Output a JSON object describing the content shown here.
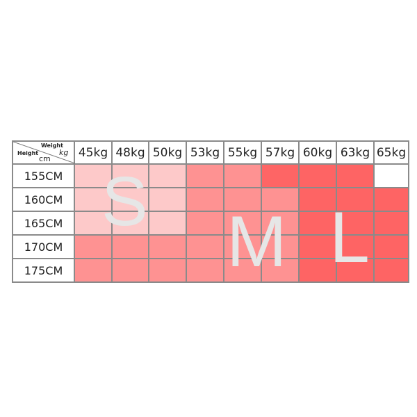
{
  "corner": {
    "weight": "Weight",
    "kg": "kg",
    "height": "Height",
    "cm": "cm"
  },
  "weights": [
    "45kg",
    "48kg",
    "50kg",
    "53kg",
    "55kg",
    "57kg",
    "60kg",
    "63kg",
    "65kg"
  ],
  "heights": [
    "155CM",
    "160CM",
    "165CM",
    "170CM",
    "175CM"
  ],
  "sizes": {
    "S": "S",
    "M": "M",
    "L": "L"
  },
  "colors": {
    "S": "#fdc9c9",
    "M": "#fe9292",
    "M2": "#fe6565",
    "L": "#fe6464",
    "none": "#ffffff"
  },
  "grid": [
    [
      "S",
      "S",
      "S",
      "M",
      "M",
      "M2",
      "L",
      "L",
      "none"
    ],
    [
      "S",
      "S",
      "S",
      "M",
      "M",
      "M",
      "L",
      "L",
      "L"
    ],
    [
      "S",
      "S",
      "S",
      "M",
      "M",
      "M",
      "L",
      "L",
      "L"
    ],
    [
      "M",
      "M",
      "M",
      "M",
      "M",
      "M",
      "L",
      "L",
      "L"
    ],
    [
      "M",
      "M",
      "M",
      "M",
      "M",
      "M",
      "L",
      "L",
      "L"
    ]
  ]
}
